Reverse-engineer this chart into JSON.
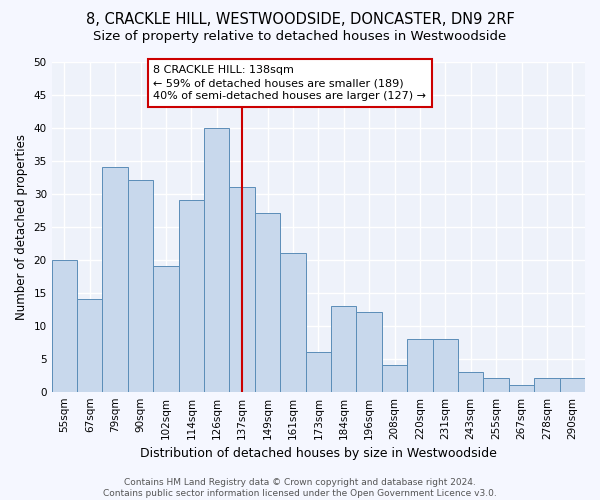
{
  "title": "8, CRACKLE HILL, WESTWOODSIDE, DONCASTER, DN9 2RF",
  "subtitle": "Size of property relative to detached houses in Westwoodside",
  "xlabel": "Distribution of detached houses by size in Westwoodside",
  "ylabel": "Number of detached properties",
  "categories": [
    "55sqm",
    "67sqm",
    "79sqm",
    "90sqm",
    "102sqm",
    "114sqm",
    "126sqm",
    "137sqm",
    "149sqm",
    "161sqm",
    "173sqm",
    "184sqm",
    "196sqm",
    "208sqm",
    "220sqm",
    "231sqm",
    "243sqm",
    "255sqm",
    "267sqm",
    "278sqm",
    "290sqm"
  ],
  "values": [
    20,
    14,
    34,
    32,
    19,
    29,
    40,
    31,
    27,
    21,
    6,
    13,
    12,
    4,
    8,
    8,
    3,
    2,
    1,
    2,
    2
  ],
  "bar_color": "#c8d8ec",
  "bar_edge_color": "#5b8db8",
  "vline_index": 7,
  "vline_color": "#cc0000",
  "annotation_lines": [
    "8 CRACKLE HILL: 138sqm",
    "← 59% of detached houses are smaller (189)",
    "40% of semi-detached houses are larger (127) →"
  ],
  "annotation_box_color": "#cc0000",
  "ylim": [
    0,
    50
  ],
  "yticks": [
    0,
    5,
    10,
    15,
    20,
    25,
    30,
    35,
    40,
    45,
    50
  ],
  "axes_bg_color": "#eef2fa",
  "grid_color": "#ffffff",
  "fig_bg_color": "#f5f7ff",
  "footer_line1": "Contains HM Land Registry data © Crown copyright and database right 2024.",
  "footer_line2": "Contains public sector information licensed under the Open Government Licence v3.0.",
  "title_fontsize": 10.5,
  "subtitle_fontsize": 9.5,
  "xlabel_fontsize": 9,
  "ylabel_fontsize": 8.5,
  "tick_fontsize": 7.5,
  "annotation_fontsize": 8,
  "footer_fontsize": 6.5
}
